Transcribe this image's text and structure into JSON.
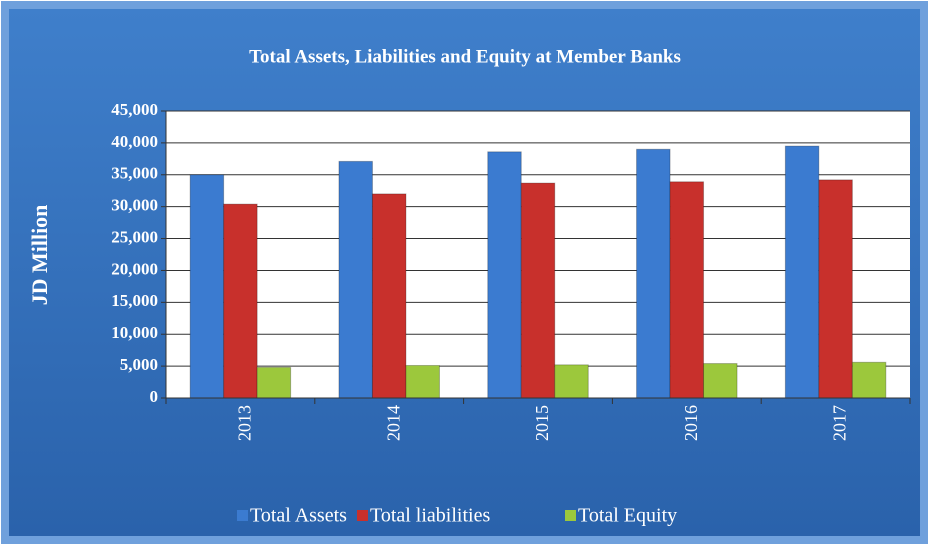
{
  "chart_data": {
    "type": "bar",
    "title": "Total Assets, Liabilities and Equity at Member Banks",
    "y_label": "JD Million",
    "categories": [
      "2013",
      "2014",
      "2015",
      "2016",
      "2017"
    ],
    "series": [
      {
        "name": "Total Assets",
        "color": "#3b7bd0",
        "values": [
          35000,
          37100,
          38600,
          39000,
          39500
        ]
      },
      {
        "name": "Total liabilities",
        "color": "#c8302c",
        "values": [
          30400,
          32000,
          33700,
          33900,
          34200
        ]
      },
      {
        "name": "Total Equity",
        "color": "#9cc83c",
        "values": [
          4800,
          5100,
          5200,
          5400,
          5600
        ]
      }
    ],
    "ylim": [
      0,
      45000
    ],
    "yticks": [
      0,
      {
        "value": 5000,
        "label": "5,000"
      },
      {
        "value": 10000,
        "label": "10,000"
      },
      {
        "value": 15000,
        "label": "15,000"
      },
      {
        "value": 20000,
        "label": "20,000"
      },
      {
        "value": 25000,
        "label": "25,000"
      },
      {
        "value": 30000,
        "label": "30,000"
      },
      {
        "value": 35000,
        "label": "35,000"
      },
      {
        "value": 40000,
        "label": "40,000"
      },
      {
        "value": 45000,
        "label": "45,000"
      }
    ],
    "grid": true
  }
}
